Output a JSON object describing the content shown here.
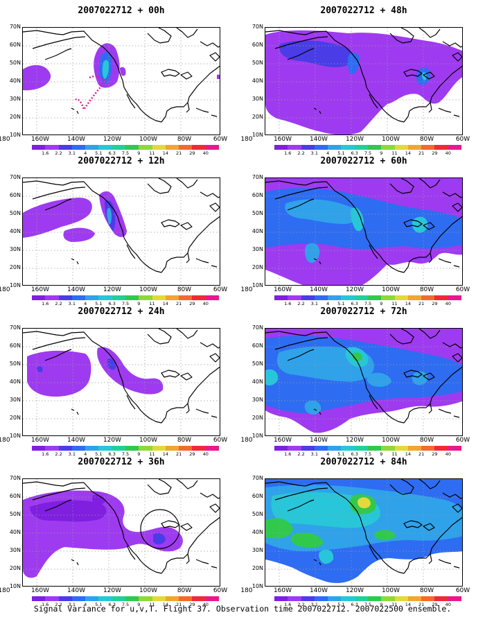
{
  "caption": "Signal Variance for u,v,T. Flight 37. Observation time 2007022712. 2007022500 ensemble.",
  "axes": {
    "lat_labels": [
      "70N",
      "60N",
      "50N",
      "40N",
      "30N",
      "20N",
      "10N"
    ],
    "lon_labels": [
      "180",
      "160W",
      "140W",
      "120W",
      "100W",
      "80W",
      "60W"
    ],
    "lat_range": [
      10,
      70
    ],
    "lon_range": [
      190,
      300
    ],
    "grid": "dotted"
  },
  "colorbar": {
    "labels": [
      "1.6",
      "2.2",
      "3.1",
      "4",
      "5.1",
      "6.3",
      "7.5",
      "9",
      "11",
      "14",
      "21",
      "29",
      "40"
    ],
    "colors": [
      "#7f1fe0",
      "#9e3bf0",
      "#4a3ce6",
      "#2e6cf2",
      "#2fa2ea",
      "#27c6d8",
      "#22cf99",
      "#31c94c",
      "#8fd83a",
      "#e3d93a",
      "#f0a633",
      "#f36a2e",
      "#ee2a39",
      "#e8198e"
    ]
  },
  "panels": [
    {
      "title": "2007022712 + 00h"
    },
    {
      "title": "2007022712 + 48h"
    },
    {
      "title": "2007022712 + 12h"
    },
    {
      "title": "2007022712 + 60h"
    },
    {
      "title": "2007022712 + 24h"
    },
    {
      "title": "2007022712 + 72h"
    },
    {
      "title": "2007022712 + 36h"
    },
    {
      "title": "2007022712 + 84h"
    }
  ]
}
